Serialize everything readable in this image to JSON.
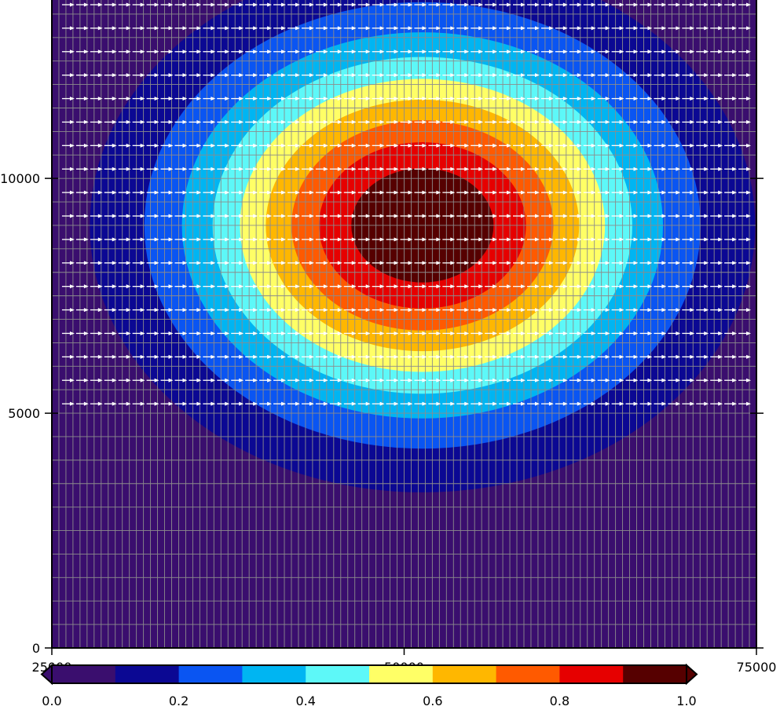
{
  "chart_data": {
    "type": "heatmap",
    "subtype": "filled-contour with vector field",
    "title": "",
    "xlabel": "",
    "ylabel": "",
    "xlim": [
      25000,
      75000
    ],
    "ylim": [
      0,
      13800
    ],
    "x_ticks": [
      {
        "value": 25000,
        "label": "25000"
      },
      {
        "value": 50000,
        "label": "50000"
      },
      {
        "value": 75000,
        "label": "75000"
      }
    ],
    "y_ticks": [
      {
        "value": 0,
        "label": "0"
      },
      {
        "value": 5000,
        "label": "5000"
      },
      {
        "value": 10000,
        "label": "10000"
      }
    ],
    "field": {
      "shape": "gaussian",
      "center_x": 51300,
      "center_y": 9000,
      "sigma_x": 11000,
      "sigma_y": 2650,
      "peak": 1.0
    },
    "contour_levels": [
      0.0,
      0.1,
      0.2,
      0.3,
      0.4,
      0.5,
      0.6,
      0.7,
      0.8,
      0.9,
      1.0
    ],
    "colorbar": {
      "colors": [
        "#3a0e6e",
        "#0b0893",
        "#0a55f2",
        "#00b5f2",
        "#5df8f8",
        "#ffff66",
        "#ffb700",
        "#ff5a00",
        "#e60000",
        "#560000"
      ],
      "tick_values": [
        0.0,
        0.2,
        0.4,
        0.6,
        0.8,
        1.0
      ],
      "tick_labels": [
        "0.0",
        "0.2",
        "0.4",
        "0.6",
        "0.8",
        "1.0"
      ],
      "extend": "both"
    },
    "grid": {
      "visible": true,
      "dx": 500,
      "dy": 500,
      "color": "#8c8c8c"
    },
    "vectors": {
      "direction": "east",
      "color": "#ffffff",
      "y_min": 5200,
      "y_max": 13800,
      "dy": 500,
      "dx": 1000
    }
  }
}
